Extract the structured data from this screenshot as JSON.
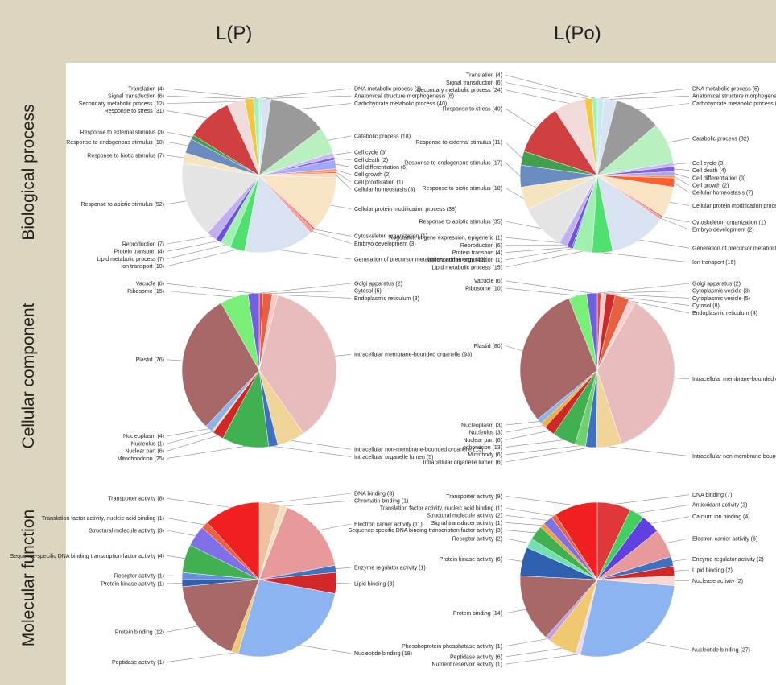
{
  "column_titles": [
    "L(P)",
    "L(Po)"
  ],
  "row_titles": [
    "Biological process",
    "Cellular component",
    "Molecular function"
  ],
  "chart_data": [
    {
      "type": "pie",
      "row": "Biological process",
      "column": "L(P)",
      "slices": [
        {
          "label": "DNA metabolic process",
          "value": 2,
          "color": "#c6e8ee"
        },
        {
          "label": "Anatomical structure morphogenesis",
          "value": 6,
          "color": "#d8e4f2"
        },
        {
          "label": "Carbohydrate metabolic process",
          "value": 40,
          "color": "#9a9a9a"
        },
        {
          "label": "Catabolic process",
          "value": 18,
          "color": "#b8f0c0"
        },
        {
          "label": "Cell cycle",
          "value": 3,
          "color": "#c9b8f8"
        },
        {
          "label": "Cell death",
          "value": 2,
          "color": "#8060e0"
        },
        {
          "label": "Cell differentiation",
          "value": 6,
          "color": "#a0a8ff"
        },
        {
          "label": "Cell growth",
          "value": 2,
          "color": "#ff9060"
        },
        {
          "label": "Cell proliferation",
          "value": 1,
          "color": "#ff6030"
        },
        {
          "label": "Cellular homeostasis",
          "value": 3,
          "color": "#f8d8c0"
        },
        {
          "label": "Cellular protein modification process",
          "value": 38,
          "color": "#f8e4c4"
        },
        {
          "label": "Cytoskeleton organization",
          "value": 1,
          "color": "#e04040"
        },
        {
          "label": "Embryo development",
          "value": 3,
          "color": "#f0a0a0"
        },
        {
          "label": "Generation of precursor metabolites and energy",
          "value": 48,
          "color": "#d8e2f0"
        },
        {
          "label": "Ion transport",
          "value": 10,
          "color": "#50e070"
        },
        {
          "label": "Lipid metabolic process",
          "value": 7,
          "color": "#a0f0b0"
        },
        {
          "label": "Protein transport",
          "value": 4,
          "color": "#7050e0"
        },
        {
          "label": "Reproduction",
          "value": 7,
          "color": "#c0b0f0"
        },
        {
          "label": "Response to abiotic stimulus",
          "value": 52,
          "color": "#e4e4e4"
        },
        {
          "label": "Response to biotic stimulus",
          "value": 7,
          "color": "#f4e4c0"
        },
        {
          "label": "Response to endogenous stimulus",
          "value": 10,
          "color": "#6a8cc0"
        },
        {
          "label": "Response to external stimulus",
          "value": 3,
          "color": "#40a050"
        },
        {
          "label": "Response to stress",
          "value": 31,
          "color": "#d04040"
        },
        {
          "label": "Secondary metabolic process",
          "value": 12,
          "color": "#f0dada"
        },
        {
          "label": "Signal transduction",
          "value": 6,
          "color": "#f0c840"
        },
        {
          "label": "Translation",
          "value": 4,
          "color": "#a0f0c0"
        }
      ]
    },
    {
      "type": "pie",
      "row": "Biological process",
      "column": "L(Po)",
      "slices": [
        {
          "label": "DNA metabolic process",
          "value": 5,
          "color": "#c6e8ee"
        },
        {
          "label": "Anatomical structure morphogenesis",
          "value": 10,
          "color": "#d8e4f2"
        },
        {
          "label": "Carbohydrate metabolic process",
          "value": 36,
          "color": "#9a9a9a"
        },
        {
          "label": "Catabolic process",
          "value": 32,
          "color": "#b8f0c0"
        },
        {
          "label": "Cell cycle",
          "value": 3,
          "color": "#c9b8f8"
        },
        {
          "label": "Cell death",
          "value": 4,
          "color": "#8060e0"
        },
        {
          "label": "Cell differentiation",
          "value": 3,
          "color": "#a0a8ff"
        },
        {
          "label": "Cell growth",
          "value": 2,
          "color": "#ff9060"
        },
        {
          "label": "Cellular homeostasis",
          "value": 7,
          "color": "#ff6030"
        },
        {
          "label": "Cellular protein modification process",
          "value": 24,
          "color": "#f8e4c4"
        },
        {
          "label": "Cytoskeleton organization",
          "value": 1,
          "color": "#e04040"
        },
        {
          "label": "Embryo development",
          "value": 2,
          "color": "#f0a0a0"
        },
        {
          "label": "Generation of precursor metabolites and energy",
          "value": 45,
          "color": "#d8e2f0"
        },
        {
          "label": "Ion transport",
          "value": 16,
          "color": "#50e070"
        },
        {
          "label": "Lipid metabolic process",
          "value": 15,
          "color": "#a0f0b0"
        },
        {
          "label": "Mitochondrion organization",
          "value": 1,
          "color": "#4060c0"
        },
        {
          "label": "Protein transport",
          "value": 4,
          "color": "#7050e0"
        },
        {
          "label": "Reproduction",
          "value": 6,
          "color": "#c0b0f0"
        },
        {
          "label": "Regulation of gene expression, epigenetic",
          "value": 1,
          "color": "#b0d0f0"
        },
        {
          "label": "Response to abiotic stimulus",
          "value": 35,
          "color": "#e4e4e4"
        },
        {
          "label": "Response to biotic stimulus",
          "value": 18,
          "color": "#f4e4c0"
        },
        {
          "label": "Response to endogenous stimulus",
          "value": 17,
          "color": "#6a8cc0"
        },
        {
          "label": "Response to external stimulus",
          "value": 11,
          "color": "#40a050"
        },
        {
          "label": "Response to stress",
          "value": 40,
          "color": "#d04040"
        },
        {
          "label": "Secondary metabolic process",
          "value": 24,
          "color": "#f0dada"
        },
        {
          "label": "Signal transduction",
          "value": 6,
          "color": "#f0c840"
        },
        {
          "label": "Translation",
          "value": 4,
          "color": "#a0f0c0"
        }
      ]
    },
    {
      "type": "pie",
      "row": "Cellular component",
      "column": "L(P)",
      "slices": [
        {
          "label": "Golgi apparatus",
          "value": 2,
          "color": "#f04040"
        },
        {
          "label": "Cytosol",
          "value": 5,
          "color": "#e86040"
        },
        {
          "label": "Endoplasmic reticulum",
          "value": 3,
          "color": "#f8c8c8"
        },
        {
          "label": "Intracellular membrane-bounded organelle",
          "value": 93,
          "color": "#e8bcbc"
        },
        {
          "label": "Intracellular non-membrane-bounded organelle",
          "value": 15,
          "color": "#f0d498"
        },
        {
          "label": "Intracellular organelle lumen",
          "value": 5,
          "color": "#4070c0"
        },
        {
          "label": "Mitochondrion",
          "value": 25,
          "color": "#40b050"
        },
        {
          "label": "Nuclear part",
          "value": 6,
          "color": "#d02828"
        },
        {
          "label": "Nucleolus",
          "value": 1,
          "color": "#f8d8a0"
        },
        {
          "label": "Nucleoplasm",
          "value": 4,
          "color": "#8cb4ec"
        },
        {
          "label": "Plastid",
          "value": 76,
          "color": "#a86868"
        },
        {
          "label": "Ribosome",
          "value": 15,
          "color": "#78f078"
        },
        {
          "label": "Vacuole",
          "value": 6,
          "color": "#7060e0"
        }
      ]
    },
    {
      "type": "pie",
      "row": "Cellular component",
      "column": "L(Po)",
      "slices": [
        {
          "label": "Golgi apparatus",
          "value": 2,
          "color": "#f04040"
        },
        {
          "label": "Cytoplasmic vesicle",
          "value": 3,
          "color": "#f8c8c8"
        },
        {
          "label": "Cytoplasmic vesicle",
          "value": 5,
          "color": "#d02828"
        },
        {
          "label": "Cytosol",
          "value": 8,
          "color": "#e86040"
        },
        {
          "label": "Endoplasmic reticulum",
          "value": 4,
          "color": "#f8d0d0"
        },
        {
          "label": "Intracellular membrane-bounded organelle",
          "value": 98,
          "color": "#e8bcbc"
        },
        {
          "label": "Intracellular non-membrane-bounded organelle",
          "value": 14,
          "color": "#f0d498"
        },
        {
          "label": "Intracellular organelle lumen",
          "value": 6,
          "color": "#4070c0"
        },
        {
          "label": "Microbody",
          "value": 6,
          "color": "#70d070"
        },
        {
          "label": "ochondrion",
          "value": 13,
          "color": "#40b050"
        },
        {
          "label": "Nuclear part",
          "value": 6,
          "color": "#d02828"
        },
        {
          "label": "Nucleolus",
          "value": 3,
          "color": "#f0b040"
        },
        {
          "label": "Nucleoplasm",
          "value": 3,
          "color": "#8cb4ec"
        },
        {
          "label": "Plastid",
          "value": 80,
          "color": "#a86868"
        },
        {
          "label": "Ribosome",
          "value": 10,
          "color": "#78f078"
        },
        {
          "label": "Vacuole",
          "value": 6,
          "color": "#7060e0"
        }
      ]
    },
    {
      "type": "pie",
      "row": "Molecular function",
      "column": "L(P)",
      "slices": [
        {
          "label": "DNA binding",
          "value": 3,
          "color": "#f0c0a0"
        },
        {
          "label": "Chromatin binding",
          "value": 1,
          "color": "#f0e0c0"
        },
        {
          "label": "Electron carrier activity",
          "value": 11,
          "color": "#e89a9a"
        },
        {
          "label": "Enzyme regulator activity",
          "value": 1,
          "color": "#4070c0"
        },
        {
          "label": "Lipid binding",
          "value": 3,
          "color": "#d02828"
        },
        {
          "label": "Nucleotide binding",
          "value": 18,
          "color": "#8cb4f0"
        },
        {
          "label": "Peptidase activity",
          "value": 1,
          "color": "#f0c870"
        },
        {
          "label": "Protein binding",
          "value": 12,
          "color": "#a86868"
        },
        {
          "label": "Protein kinase activity",
          "value": 1,
          "color": "#2f60b0"
        },
        {
          "label": "Receptor activity",
          "value": 1,
          "color": "#6890d8"
        },
        {
          "label": "Sequence-specific DNA binding transcription factor activity",
          "value": 4,
          "color": "#40b050"
        },
        {
          "label": "Structural molecule activity",
          "value": 3,
          "color": "#8070e8"
        },
        {
          "label": "Translation factor activity, nucleic acid binding",
          "value": 1,
          "color": "#f06040"
        },
        {
          "label": "Transporter activity",
          "value": 8,
          "color": "#f02020"
        }
      ]
    },
    {
      "type": "pie",
      "row": "Molecular function",
      "column": "L(Po)",
      "slices": [
        {
          "label": "DNA binding",
          "value": 7,
          "color": "#e03838"
        },
        {
          "label": "Antioxidant activity",
          "value": 3,
          "color": "#40d060"
        },
        {
          "label": "Calcium ion binding",
          "value": 4,
          "color": "#6040e0"
        },
        {
          "label": "Electron carrier activity",
          "value": 6,
          "color": "#e89a9a"
        },
        {
          "label": "Enzyme regulator activity",
          "value": 2,
          "color": "#4070c0"
        },
        {
          "label": "Lipid binding",
          "value": 2,
          "color": "#d02828"
        },
        {
          "label": "Nuclease activity",
          "value": 2,
          "color": "#f8d8d0"
        },
        {
          "label": "Nucleotide binding",
          "value": 27,
          "color": "#8cb4f0"
        },
        {
          "label": "Nutrient reservoir activity",
          "value": 1,
          "color": "#e8d8f0"
        },
        {
          "label": "Peptidase activity",
          "value": 6,
          "color": "#f0c870"
        },
        {
          "label": "Phosphoprotein phosphatase activity",
          "value": 1,
          "color": "#c0a0e0"
        },
        {
          "label": "Protein binding",
          "value": 14,
          "color": "#a86868"
        },
        {
          "label": "Protein kinase activity",
          "value": 6,
          "color": "#2f60b0"
        },
        {
          "label": "Receptor activity",
          "value": 2,
          "color": "#70e0b0"
        },
        {
          "label": "Sequence-specific DNA binding transcription factor activity",
          "value": 3,
          "color": "#40b050"
        },
        {
          "label": "Signal transducer activity",
          "value": 1,
          "color": "#f0a040"
        },
        {
          "label": "Structural molecule activity",
          "value": 2,
          "color": "#8070e8"
        },
        {
          "label": "Translation factor activity, nucleic acid binding",
          "value": 1,
          "color": "#f06040"
        },
        {
          "label": "Transporter activity",
          "value": 9,
          "color": "#f02020"
        }
      ]
    }
  ]
}
